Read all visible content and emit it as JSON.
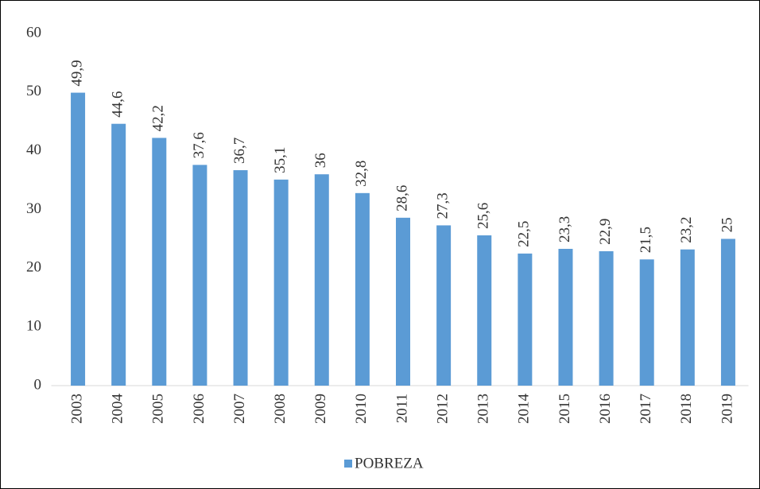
{
  "chart_data": {
    "type": "bar",
    "categories": [
      "2003",
      "2004",
      "2005",
      "2006",
      "2007",
      "2008",
      "2009",
      "2010",
      "2011",
      "2012",
      "2013",
      "2014",
      "2015",
      "2016",
      "2017",
      "2018",
      "2019"
    ],
    "series": [
      {
        "name": "POBREZA",
        "color": "#5b9bd5",
        "values": [
          49.9,
          44.6,
          42.2,
          37.6,
          36.7,
          35.1,
          36,
          32.8,
          28.6,
          27.3,
          25.6,
          22.5,
          23.3,
          22.9,
          21.5,
          23.2,
          25
        ],
        "value_labels": [
          "49,9",
          "44,6",
          "42,2",
          "37,6",
          "36,7",
          "35,1",
          "36",
          "32,8",
          "28,6",
          "27,3",
          "25,6",
          "22,5",
          "23,3",
          "22,9",
          "21,5",
          "23,2",
          "25"
        ]
      }
    ],
    "ylim": [
      0,
      60
    ],
    "yticks": [
      0,
      10,
      20,
      30,
      40,
      50,
      60
    ],
    "grid": false,
    "legend": "bottom"
  }
}
